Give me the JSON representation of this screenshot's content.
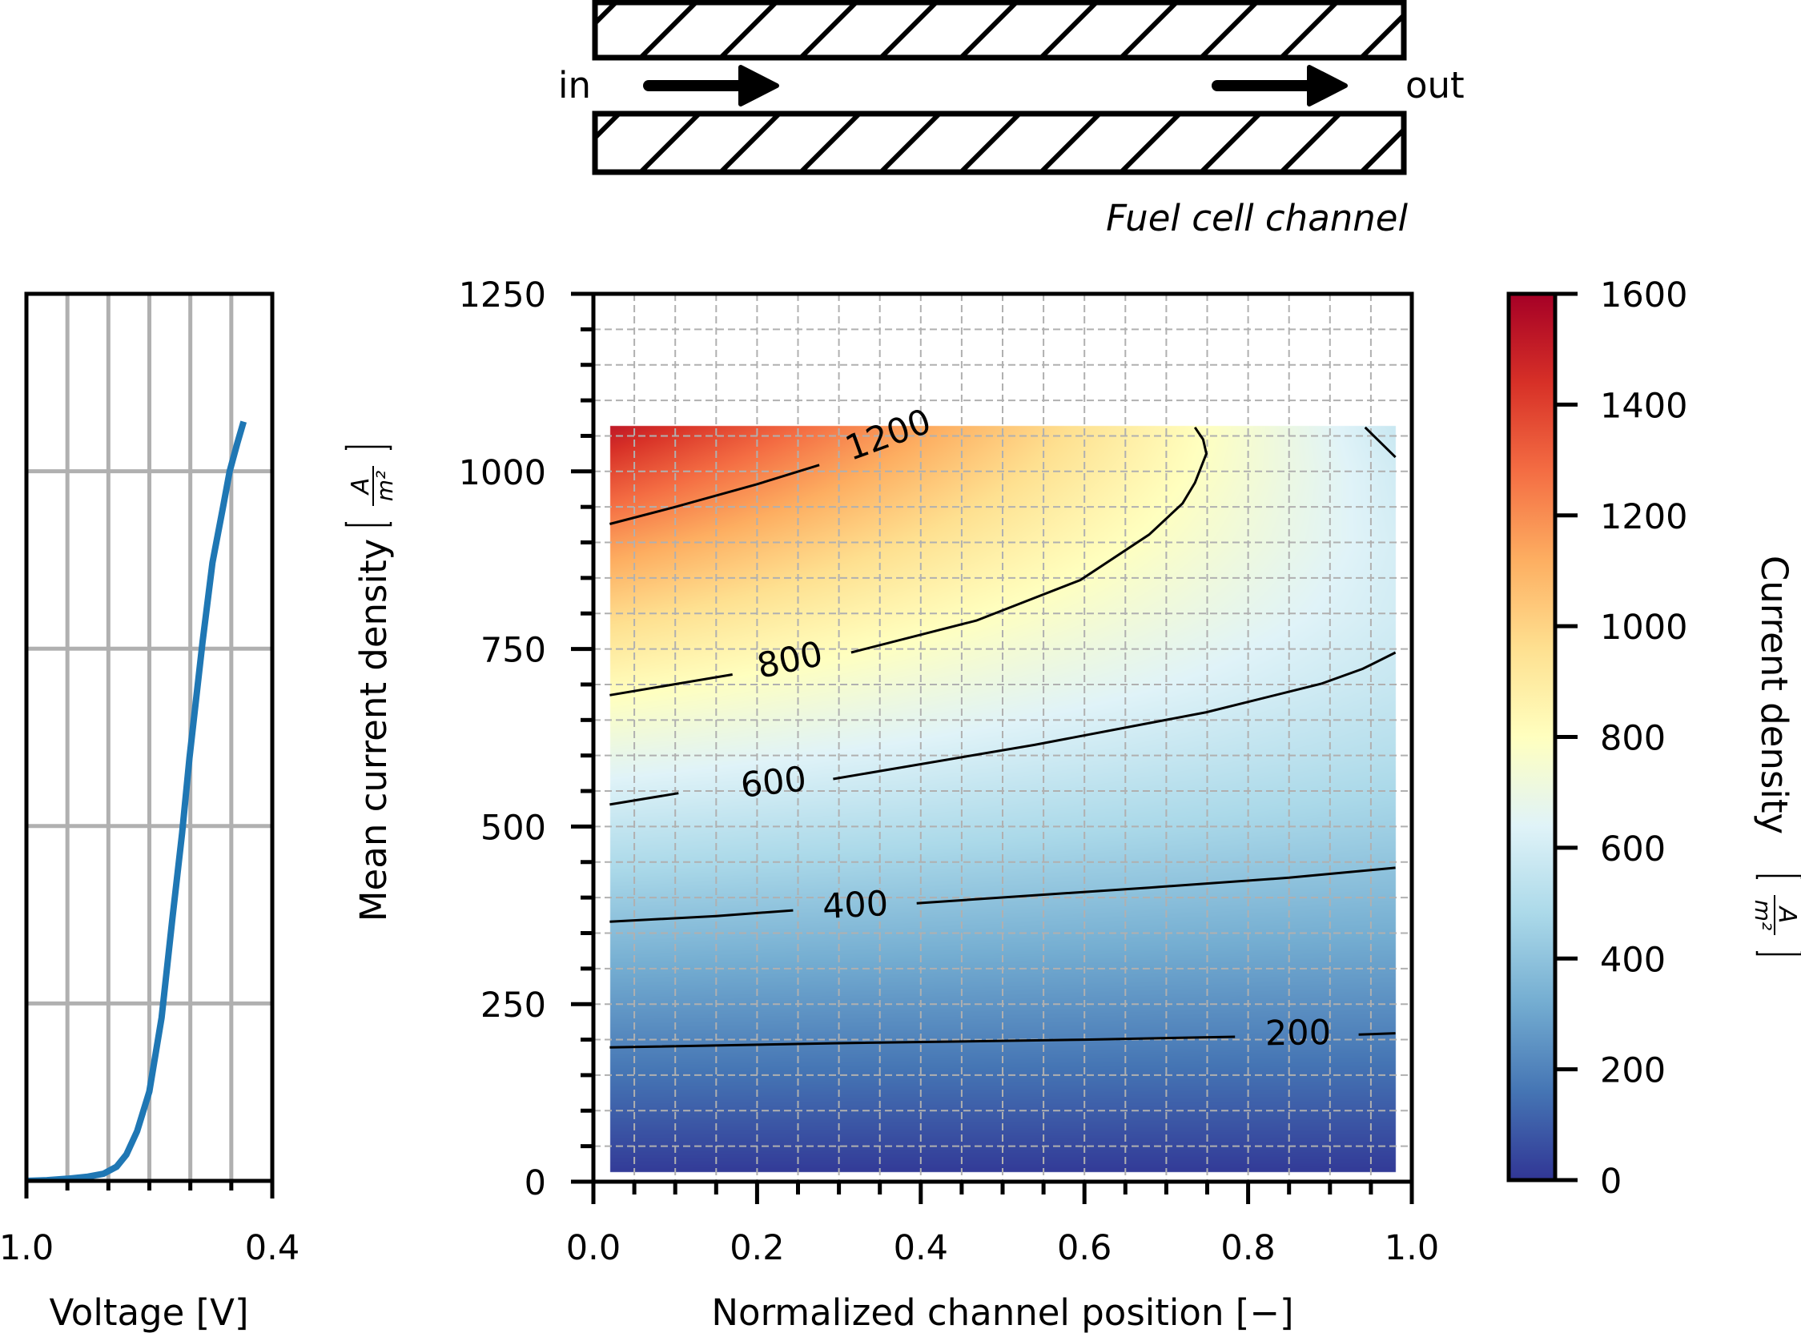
{
  "channel": {
    "inlet_label": "in",
    "outlet_label": "out",
    "caption": "Fuel cell channel"
  },
  "chart_data": [
    {
      "type": "line",
      "panel": "polarization-curve",
      "xlabel": "Voltage [V]",
      "xlim": [
        1.0,
        0.4
      ],
      "x_tick_labels": [
        "1.0",
        "0.4"
      ],
      "ylim": [
        0,
        1250
      ],
      "grid": true,
      "color": "#1f77b4",
      "x": [
        1.0,
        0.95,
        0.9,
        0.85,
        0.812,
        0.78,
        0.756,
        0.73,
        0.7,
        0.67,
        0.644,
        0.62,
        0.602,
        0.57,
        0.546,
        0.52,
        0.504,
        0.485,
        0.47
      ],
      "y": [
        0,
        1,
        3,
        6,
        10,
        20,
        37,
        70,
        126,
        230,
        369,
        490,
        596,
        760,
        871,
        950,
        1000,
        1040,
        1070
      ]
    },
    {
      "type": "heatmap",
      "panel": "current-density-map",
      "xlabel": "Normalized channel position [−]",
      "ylabel": "Mean current density",
      "ylabel_unit_num": "A",
      "ylabel_unit_den": "m²",
      "xlim": [
        0.0,
        1.0
      ],
      "ylim": [
        0,
        1250
      ],
      "x_tick_labels": [
        "0.0",
        "0.2",
        "0.4",
        "0.6",
        "0.8",
        "1.0"
      ],
      "y_tick_labels": [
        "0",
        "250",
        "500",
        "750",
        "1000",
        "1250"
      ],
      "grid": true,
      "colormap": "RdYlBu_r",
      "colormap_stops": [
        "#313695",
        "#4575b4",
        "#74add1",
        "#abd9e9",
        "#e0f3f8",
        "#ffffbf",
        "#fee090",
        "#fdae61",
        "#f46d43",
        "#d73027",
        "#a50026"
      ],
      "x": [
        0.02,
        0.18,
        0.34,
        0.5,
        0.66,
        0.82,
        0.98
      ],
      "y": [
        14,
        100,
        200,
        300,
        400,
        500,
        600,
        700,
        800,
        900,
        1000,
        1065
      ],
      "z": [
        [
          13,
          12,
          12,
          12,
          12,
          12,
          11
        ],
        [
          105,
          103,
          101,
          100,
          98,
          97,
          95
        ],
        [
          210,
          207,
          203,
          200,
          196,
          192,
          189
        ],
        [
          319,
          312,
          306,
          299,
          293,
          286,
          280
        ],
        [
          432,
          421,
          410,
          399,
          388,
          377,
          366
        ],
        [
          552,
          534,
          516,
          498,
          480,
          462,
          444
        ],
        [
          682,
          654,
          625,
          596,
          568,
          539,
          511
        ],
        [
          826,
          782,
          738,
          694,
          651,
          607,
          563
        ],
        [
          987,
          922,
          857,
          792,
          727,
          662,
          597
        ],
        [
          1168,
          1075,
          982,
          888,
          795,
          702,
          608
        ],
        [
          1374,
          1244,
          1114,
          984,
          854,
          724,
          594
        ],
        [
          1518,
          1360,
          1201,
          1043,
          885,
          727,
          569
        ]
      ],
      "contours": [
        {
          "level": 200,
          "label": "200",
          "label_at": [
            0.861,
            210
          ],
          "angle": -1,
          "segments": [
            [
              [
                0.02,
                189
              ],
              [
                0.3,
                195
              ],
              [
                0.6,
                200
              ],
              [
                0.784,
                204
              ]
            ],
            [
              [
                0.935,
                207
              ],
              [
                0.98,
                209
              ]
            ]
          ]
        },
        {
          "level": 400,
          "label": "400",
          "label_at": [
            0.32,
            390
          ],
          "angle": -3,
          "segments": [
            [
              [
                0.02,
                366
              ],
              [
                0.15,
                374
              ],
              [
                0.244,
                382
              ]
            ],
            [
              [
                0.395,
                392
              ],
              [
                0.679,
                414
              ],
              [
                0.85,
                428
              ],
              [
                0.98,
                442
              ]
            ]
          ]
        },
        {
          "level": 600,
          "label": "600",
          "label_at": [
            0.22,
            563
          ],
          "angle": -6,
          "segments": [
            [
              [
                0.02,
                531
              ],
              [
                0.104,
                547
              ]
            ],
            [
              [
                0.293,
                567
              ],
              [
                0.539,
                615
              ],
              [
                0.749,
                661
              ],
              [
                0.889,
                701
              ],
              [
                0.94,
                722
              ],
              [
                0.98,
                745
              ]
            ],
            [
              [
                0.943,
                1062
              ],
              [
                0.98,
                1020
              ]
            ]
          ]
        },
        {
          "level": 800,
          "label": "800",
          "label_at": [
            0.24,
            735
          ],
          "angle": -12,
          "segments": [
            [
              [
                0.02,
                685
              ],
              [
                0.17,
                714
              ]
            ],
            [
              [
                0.315,
                745
              ],
              [
                0.468,
                790
              ],
              [
                0.595,
                847
              ],
              [
                0.679,
                911
              ],
              [
                0.72,
                955
              ],
              [
                0.735,
                984
              ],
              [
                0.749,
                1025
              ],
              [
                0.745,
                1045
              ],
              [
                0.735,
                1062
              ]
            ]
          ]
        },
        {
          "level": 1200,
          "label": "1200",
          "label_at": [
            0.36,
            1052
          ],
          "angle": -20,
          "segments": [
            [
              [
                0.02,
                926
              ],
              [
                0.1,
                950
              ],
              [
                0.2,
                982
              ],
              [
                0.276,
                1009
              ]
            ]
          ]
        }
      ]
    },
    {
      "type": "colorbar",
      "label": "Current density",
      "unit_num": "A",
      "unit_den": "m²",
      "range": [
        0,
        1600
      ],
      "tick_labels": [
        "0",
        "200",
        "400",
        "600",
        "800",
        "1000",
        "1200",
        "1400",
        "1600"
      ]
    }
  ]
}
